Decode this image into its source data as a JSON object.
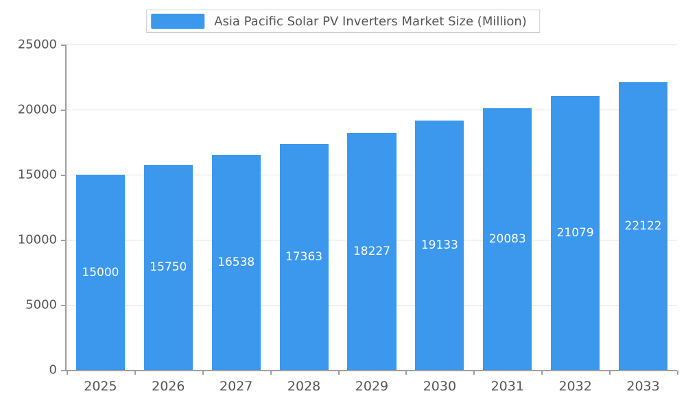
{
  "chart_data": {
    "type": "bar",
    "title": "Asia Pacific Solar PV Inverters Market Size (Million)",
    "categories": [
      "2025",
      "2026",
      "2027",
      "2028",
      "2029",
      "2030",
      "2031",
      "2032",
      "2033"
    ],
    "values": [
      15000,
      15750,
      16538,
      17363,
      18227,
      19133,
      20083,
      21079,
      22122
    ],
    "xlabel": "",
    "ylabel": "",
    "ylim": [
      0,
      25000
    ],
    "yticks": [
      0,
      5000,
      10000,
      15000,
      20000,
      25000
    ],
    "grid": true,
    "legend_position": "top",
    "bar_color": "#3b98ec",
    "value_label_color": "#ffffff",
    "axis_color": "#9e9e9e",
    "gridline_color": "#e0e0e0",
    "text_color": "#555555"
  }
}
